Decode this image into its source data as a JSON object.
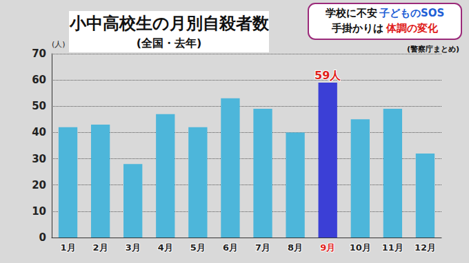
{
  "chart_data": {
    "type": "bar",
    "title": "小中高校生の月別自殺者数",
    "subtitle": "(全国・去年)",
    "y_label": "(人)",
    "source": "(警察庁まとめ)",
    "banner": [
      [
        "学校に不安",
        "子どものSOS"
      ],
      [
        "手掛かりは",
        "体調の変化"
      ]
    ],
    "categories": [
      "1月",
      "2月",
      "3月",
      "4月",
      "5月",
      "6月",
      "7月",
      "8月",
      "9月",
      "10月",
      "11月",
      "12月"
    ],
    "values": [
      42,
      43,
      28,
      47,
      42,
      53,
      49,
      40,
      59,
      45,
      49,
      32
    ],
    "colors": [
      "#4db6da",
      "#4db6da",
      "#4db6da",
      "#4db6da",
      "#4db6da",
      "#4db6da",
      "#4db6da",
      "#4db6da",
      "#3b3fd6",
      "#4db6da",
      "#4db6da",
      "#4db6da"
    ],
    "ylim": [
      0,
      70
    ],
    "yticks": [
      0,
      10,
      20,
      30,
      40,
      50,
      60,
      70
    ],
    "grid": true,
    "annotations": [
      {
        "text": "59人",
        "x": "9月",
        "y": 59
      }
    ]
  }
}
